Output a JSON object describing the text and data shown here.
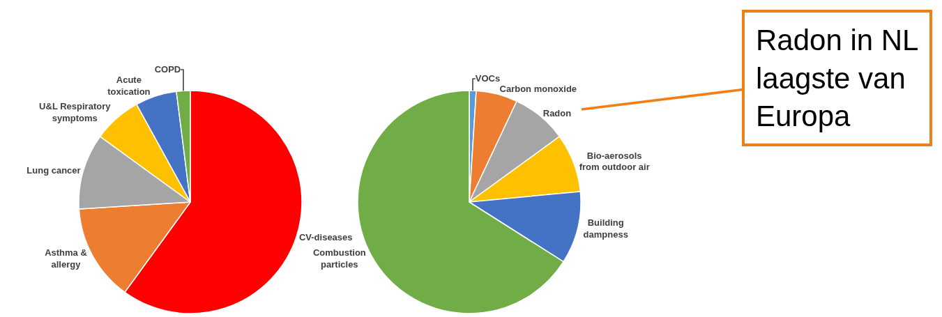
{
  "chart_data": [
    {
      "type": "pie",
      "categories": [
        "CV-diseases",
        "Asthma & allergy",
        "Lung cancer",
        "U&L Respiratory symptoms",
        "Acute toxication",
        "COPD"
      ],
      "values": [
        60,
        14,
        11,
        7,
        6,
        2
      ],
      "colors": [
        "#ff0000",
        "#ed7d31",
        "#a5a5a5",
        "#ffc000",
        "#4472c4",
        "#70ad47"
      ]
    },
    {
      "type": "pie",
      "categories": [
        "VOCs",
        "Carbon monoxide",
        "Radon",
        "Bio-aerosols from outdoor air",
        "Building dampness",
        "Combustion particles"
      ],
      "values": [
        1,
        6,
        8,
        8.5,
        10.5,
        66
      ],
      "colors": [
        "#5b9bd5",
        "#ed7d31",
        "#a5a5a5",
        "#ffc000",
        "#4472c4",
        "#70ad47"
      ],
      "annotations": [
        "Radon in NL laagste van Europa"
      ]
    }
  ]
}
